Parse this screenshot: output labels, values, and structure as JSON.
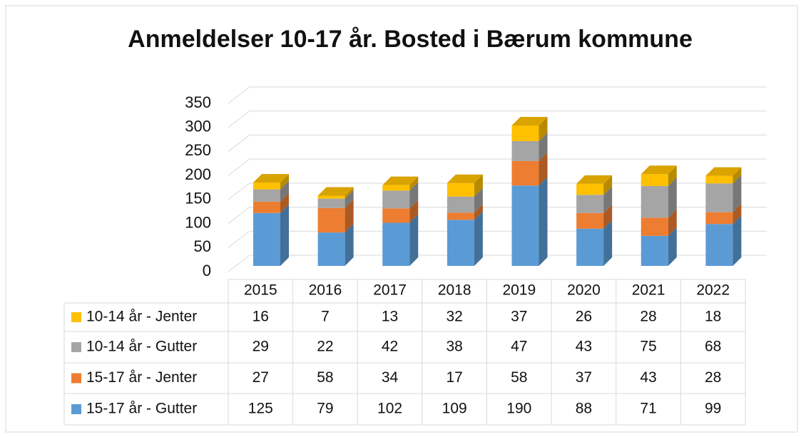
{
  "chart_data": {
    "type": "bar",
    "stacked": true,
    "title": "Anmeldelser 10-17 år. Bosted i Bærum kommune",
    "categories": [
      "2015",
      "2016",
      "2017",
      "2018",
      "2019",
      "2020",
      "2021",
      "2022"
    ],
    "series": [
      {
        "name": "10-14 år - Jenter",
        "color": "#ffc000",
        "values": [
          16,
          7,
          13,
          32,
          37,
          26,
          28,
          18
        ]
      },
      {
        "name": "10-14 år - Gutter",
        "color": "#a5a5a5",
        "values": [
          29,
          22,
          42,
          38,
          47,
          43,
          75,
          68
        ]
      },
      {
        "name": "15-17 år - Jenter",
        "color": "#ed7d31",
        "values": [
          27,
          58,
          34,
          17,
          58,
          37,
          43,
          28
        ]
      },
      {
        "name": "15-17 år - Gutter",
        "color": "#5b9bd5",
        "values": [
          125,
          79,
          102,
          109,
          190,
          88,
          71,
          99
        ]
      }
    ],
    "ylim": [
      0,
      350
    ],
    "yticks": [
      0,
      50,
      100,
      150,
      200,
      250,
      300,
      350
    ],
    "grid": true
  }
}
